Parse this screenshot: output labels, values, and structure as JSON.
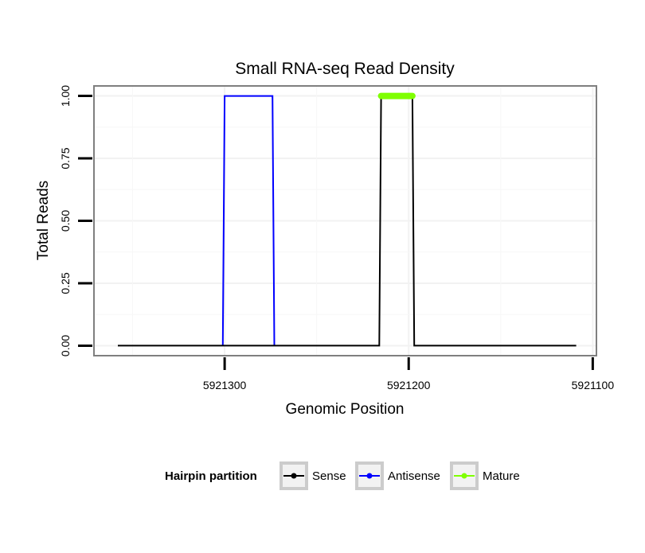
{
  "chart_data": {
    "type": "line",
    "title": "Small RNA-seq Read Density",
    "xlabel": "Genomic Position",
    "ylabel": "Total Reads",
    "xlim": [
      5921371,
      5921098
    ],
    "x_reversed": true,
    "ylim": [
      -0.04,
      1.04
    ],
    "xticks": [
      5921300,
      5921200,
      5921100
    ],
    "xtick_labels": [
      "5921300",
      "5921200",
      "5921100"
    ],
    "yticks": [
      0,
      0.25,
      0.5,
      0.75,
      1.0
    ],
    "ytick_labels": [
      "0.00",
      "0.25",
      "0.50",
      "0.75",
      "1.00"
    ],
    "grid": true,
    "legend_position": "bottom",
    "legend_title": "Hairpin partition",
    "series": [
      {
        "name": "Sense",
        "color": "#000000",
        "x": [
          5921358,
          5921216,
          5921215,
          5921198,
          5921197,
          5921109
        ],
        "y": [
          0,
          0,
          1,
          1,
          0,
          0
        ]
      },
      {
        "name": "Antisense",
        "color": "#0000ff",
        "x": [
          5921301,
          5921300,
          5921274,
          5921273
        ],
        "y": [
          0,
          1,
          1,
          0
        ]
      },
      {
        "name": "Mature",
        "color": "#7fff00",
        "x": [
          5921215,
          5921198
        ],
        "y": [
          1,
          1
        ]
      }
    ]
  }
}
